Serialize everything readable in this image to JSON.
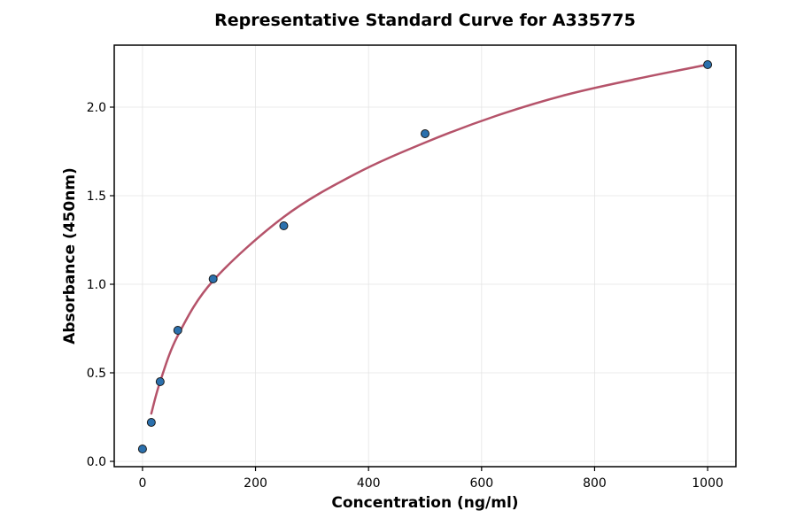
{
  "chart_data": {
    "type": "scatter",
    "title": "Representative Standard Curve for A335775",
    "xlabel": "Concentration (ng/ml)",
    "ylabel": "Absorbance (450nm)",
    "xlim": [
      -50,
      1050
    ],
    "ylim": [
      -0.03,
      2.35
    ],
    "xticks": [
      0,
      200,
      400,
      600,
      800,
      1000
    ],
    "yticks": [
      0.0,
      0.5,
      1.0,
      1.5,
      2.0
    ],
    "xtick_labels": [
      "0",
      "200",
      "400",
      "600",
      "800",
      "1000"
    ],
    "ytick_labels": [
      "0.0",
      "0.5",
      "1.0",
      "1.5",
      "2.0"
    ],
    "grid": true,
    "series": [
      {
        "kind": "points",
        "x": [
          0,
          15.6,
          31.25,
          62.5,
          125,
          250,
          500,
          1000
        ],
        "y": [
          0.07,
          0.22,
          0.45,
          0.74,
          1.03,
          1.33,
          1.85,
          2.24
        ],
        "color": "#2b70ad"
      },
      {
        "kind": "fit-curve",
        "x": [
          15.6,
          31.25,
          62.5,
          125,
          250,
          375,
          500,
          625,
          750,
          875,
          1000
        ],
        "y": [
          0.27,
          0.45,
          0.71,
          1.02,
          1.38,
          1.62,
          1.8,
          1.95,
          2.07,
          2.16,
          2.24
        ],
        "color": "#b5536a"
      }
    ]
  }
}
